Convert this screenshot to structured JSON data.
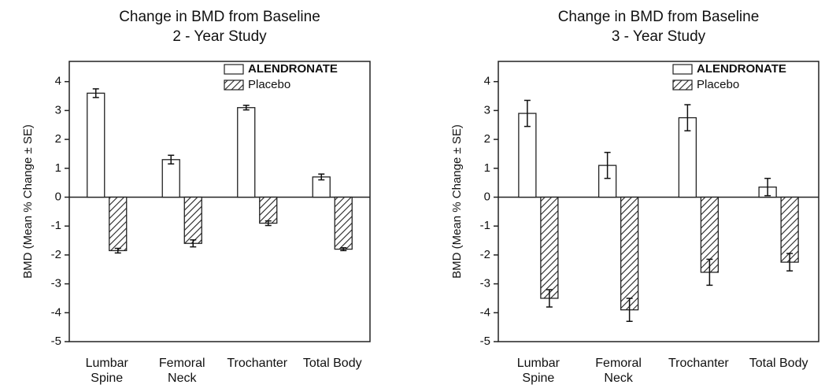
{
  "chart_data": [
    {
      "type": "bar",
      "title": "Change in BMD from Baseline",
      "subtitle": "2 - Year Study",
      "y_label": "BMD (Mean % Change ± SE)",
      "categories": [
        "Lumbar Spine",
        "Femoral Neck",
        "Trochanter",
        "Total Body"
      ],
      "series": [
        {
          "name": "ALENDRONATE",
          "color": "#ffffff",
          "hatch": false,
          "values": [
            3.6,
            1.3,
            3.1,
            0.7
          ],
          "errors": [
            0.15,
            0.15,
            0.08,
            0.1
          ]
        },
        {
          "name": "Placebo",
          "color": "#ffffff",
          "hatch": true,
          "values": [
            -1.85,
            -1.6,
            -0.9,
            -1.8
          ],
          "errors": [
            0.08,
            0.12,
            0.08,
            0.05
          ]
        }
      ],
      "ylim": [
        -5,
        4.7
      ],
      "yticks": [
        -5,
        -4,
        -3,
        -2,
        -1,
        0,
        1,
        2,
        3,
        4
      ],
      "legend": "upper right"
    },
    {
      "type": "bar",
      "title": "Change in BMD from Baseline",
      "subtitle": "3 - Year Study",
      "y_label": "BMD (Mean % Change ± SE)",
      "categories": [
        "Lumbar Spine",
        "Femoral Neck",
        "Trochanter",
        "Total Body"
      ],
      "series": [
        {
          "name": "ALENDRONATE",
          "color": "#ffffff",
          "hatch": false,
          "values": [
            2.9,
            1.1,
            2.75,
            0.35
          ],
          "errors": [
            0.45,
            0.45,
            0.45,
            0.3
          ]
        },
        {
          "name": "Placebo",
          "color": "#ffffff",
          "hatch": true,
          "values": [
            -3.5,
            -3.9,
            -2.6,
            -2.25
          ],
          "errors": [
            0.3,
            0.4,
            0.45,
            0.3
          ]
        }
      ],
      "ylim": [
        -5,
        4.7
      ],
      "yticks": [
        -5,
        -4,
        -3,
        -2,
        -1,
        0,
        1,
        2,
        3,
        4
      ],
      "legend": "upper right"
    }
  ]
}
